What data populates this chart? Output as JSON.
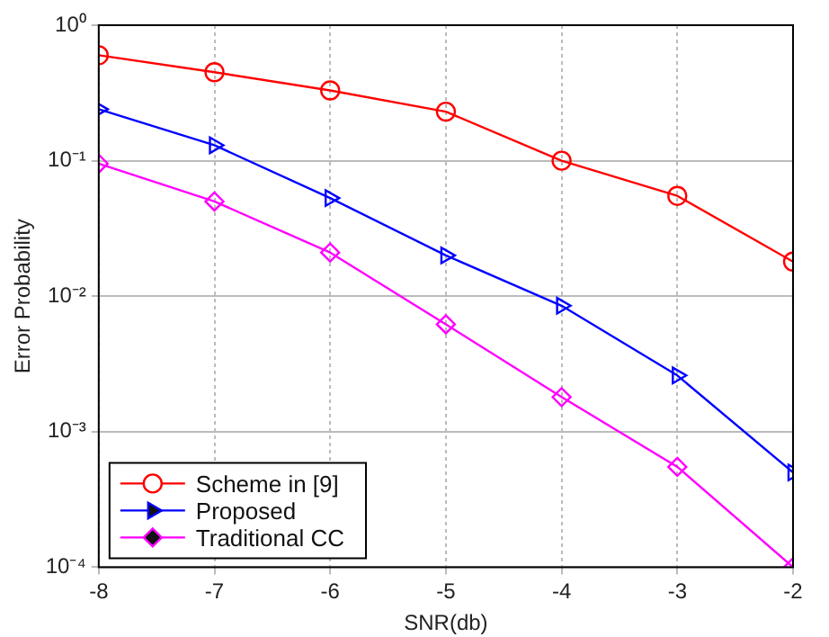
{
  "chart_data": {
    "type": "line",
    "xlabel": "SNR(db)",
    "ylabel": "Error Probability",
    "x": [
      -8,
      -7,
      -6,
      -5,
      -4,
      -3,
      -2
    ],
    "series": [
      {
        "name": "Scheme in [9]",
        "color": "#ff0000",
        "marker": "circle",
        "values": [
          0.6,
          0.45,
          0.33,
          0.23,
          0.1,
          0.055,
          0.018
        ]
      },
      {
        "name": "Proposed",
        "color": "#0000ff",
        "marker": "triangle",
        "values": [
          0.24,
          0.13,
          0.053,
          0.02,
          0.0085,
          0.0026,
          0.0005
        ]
      },
      {
        "name": "Traditional CC",
        "color": "#ff00ff",
        "marker": "diamond",
        "values": [
          0.095,
          0.05,
          0.021,
          0.0062,
          0.0018,
          0.00055,
          0.0001
        ]
      }
    ],
    "log": "y",
    "xlim": [
      -8,
      -2
    ],
    "xticks": [
      -8,
      -7,
      -6,
      -5,
      -4,
      -3,
      -2
    ],
    "ylim": [
      0.0001,
      1
    ],
    "yticks": [
      {
        "value": 0.0001,
        "label": "10⁻⁴"
      },
      {
        "value": 0.001,
        "label": "10⁻³"
      },
      {
        "value": 0.01,
        "label": "10⁻²"
      },
      {
        "value": 0.1,
        "label": "10⁻¹"
      },
      {
        "value": 1,
        "label": "10⁰"
      }
    ],
    "grid": true,
    "legend": "bottom left",
    "line_style": "solid"
  }
}
